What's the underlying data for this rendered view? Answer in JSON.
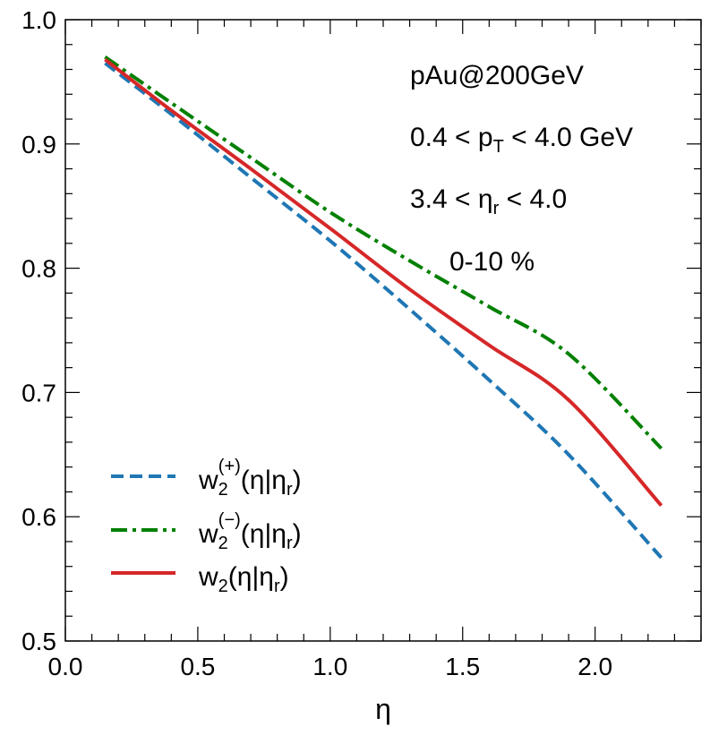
{
  "chart_data": {
    "type": "line",
    "title": "",
    "xlabel": "η",
    "ylabel": "",
    "xlim": [
      0.0,
      2.4
    ],
    "ylim": [
      0.5,
      1.0
    ],
    "x_ticks": [
      0.0,
      0.5,
      1.0,
      1.5,
      2.0
    ],
    "x_tick_labels": [
      "0.0",
      "0.5",
      "1.0",
      "1.5",
      "2.0"
    ],
    "y_ticks": [
      0.5,
      0.6,
      0.7,
      0.8,
      0.9,
      1.0
    ],
    "y_tick_labels": [
      "0.5",
      "0.6",
      "0.7",
      "0.8",
      "0.9",
      "1.0"
    ],
    "annotations": {
      "system": "pAu@200GeV",
      "pt_pre": "0.4 < p",
      "pt_sub": "T",
      "pt_post": " < 4.0 GeV",
      "eta_pre": "3.4 < η",
      "eta_sub": "r",
      "eta_post": " < 4.0",
      "centrality": "0-10 %"
    },
    "legend_position": "lower-left",
    "series": [
      {
        "name": "w2(+)(η|ηr)",
        "legend_main": "w",
        "legend_sub": "2",
        "legend_sup": "(+)",
        "legend_tail_pre": "(η|η",
        "legend_tail_sub": "r",
        "legend_tail_post": ")",
        "color": "#1f77b4",
        "dash": "dashed",
        "x": [
          0.15,
          0.4,
          0.7,
          1.0,
          1.3,
          1.6,
          1.9,
          2.25
        ],
        "y": [
          0.965,
          0.924,
          0.873,
          0.822,
          0.767,
          0.71,
          0.65,
          0.567
        ]
      },
      {
        "name": "w2(−)(η|ηr)",
        "legend_main": "w",
        "legend_sub": "2",
        "legend_sup": "(−)",
        "legend_tail_pre": "(η|η",
        "legend_tail_sub": "r",
        "legend_tail_post": ")",
        "color": "#008000",
        "dash": "dashdot",
        "x": [
          0.15,
          0.4,
          0.7,
          1.0,
          1.3,
          1.6,
          1.9,
          2.25
        ],
        "y": [
          0.97,
          0.933,
          0.889,
          0.845,
          0.806,
          0.769,
          0.731,
          0.655
        ]
      },
      {
        "name": "w2(η|ηr)",
        "legend_main": "w",
        "legend_sub": "2",
        "legend_sup": "",
        "legend_tail_pre": "(η|η",
        "legend_tail_sub": "r",
        "legend_tail_post": ")",
        "color": "#d62728",
        "dash": "solid",
        "x": [
          0.15,
          0.4,
          0.7,
          1.0,
          1.3,
          1.6,
          1.9,
          2.25
        ],
        "y": [
          0.968,
          0.927,
          0.88,
          0.832,
          0.783,
          0.738,
          0.694,
          0.609
        ]
      }
    ]
  }
}
